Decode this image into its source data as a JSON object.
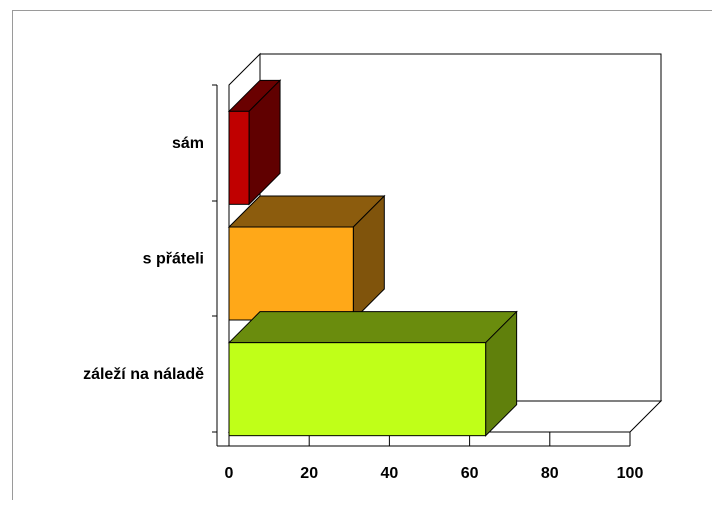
{
  "chart_data": {
    "type": "bar",
    "orientation": "horizontal",
    "style": "3d",
    "categories": [
      "sám",
      "s přáteli",
      "záleží na náladě"
    ],
    "values": [
      5,
      31,
      64
    ],
    "xlim": [
      0,
      100
    ],
    "xticks": [
      "0",
      "20",
      "40",
      "60",
      "80",
      "100"
    ],
    "colors": [
      "#c00000",
      "#ffa818",
      "#c0ff18"
    ],
    "title": "",
    "xlabel": "",
    "ylabel": "",
    "legend": "none",
    "grid": false
  }
}
